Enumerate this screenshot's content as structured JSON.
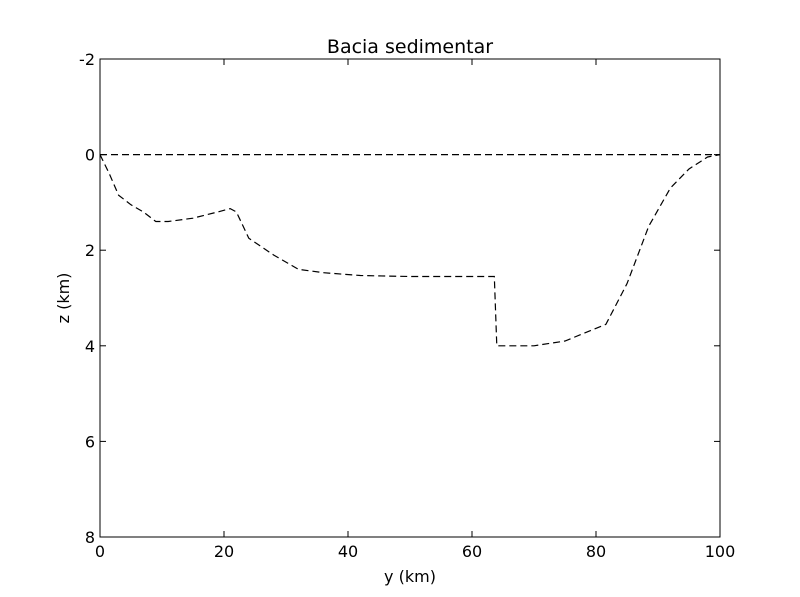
{
  "chart_data": {
    "type": "line",
    "title": "Bacia sedimentar",
    "xlabel": "y (km)",
    "ylabel": "z (km)",
    "xlim": [
      0,
      100
    ],
    "ylim": [
      8,
      -2
    ],
    "y_inverted": true,
    "xticks": [
      0,
      20,
      40,
      60,
      80,
      100
    ],
    "yticks": [
      -2,
      0,
      2,
      4,
      6,
      8
    ],
    "grid": false,
    "series": [
      {
        "style": "dashed",
        "color": "#000000",
        "points": [
          [
            0,
            0
          ],
          [
            100,
            0
          ]
        ]
      },
      {
        "style": "dashed",
        "color": "#000000",
        "points": [
          [
            0,
            0
          ],
          [
            1.5,
            0.4
          ],
          [
            3,
            0.85
          ],
          [
            5,
            1.05
          ],
          [
            7,
            1.2
          ],
          [
            9,
            1.4
          ],
          [
            11,
            1.4
          ],
          [
            15,
            1.33
          ],
          [
            19,
            1.2
          ],
          [
            21,
            1.13
          ],
          [
            22,
            1.2
          ],
          [
            24,
            1.75
          ],
          [
            28,
            2.1
          ],
          [
            32,
            2.4
          ],
          [
            36,
            2.47
          ],
          [
            42,
            2.53
          ],
          [
            50,
            2.55
          ],
          [
            56,
            2.55
          ],
          [
            63.6,
            2.55
          ],
          [
            64,
            4.0
          ],
          [
            70,
            4.0
          ],
          [
            75,
            3.9
          ],
          [
            81.6,
            3.55
          ],
          [
            85,
            2.7
          ],
          [
            88.5,
            1.5
          ],
          [
            92,
            0.7
          ],
          [
            95,
            0.3
          ],
          [
            98,
            0.05
          ],
          [
            100,
            0
          ]
        ]
      }
    ]
  }
}
